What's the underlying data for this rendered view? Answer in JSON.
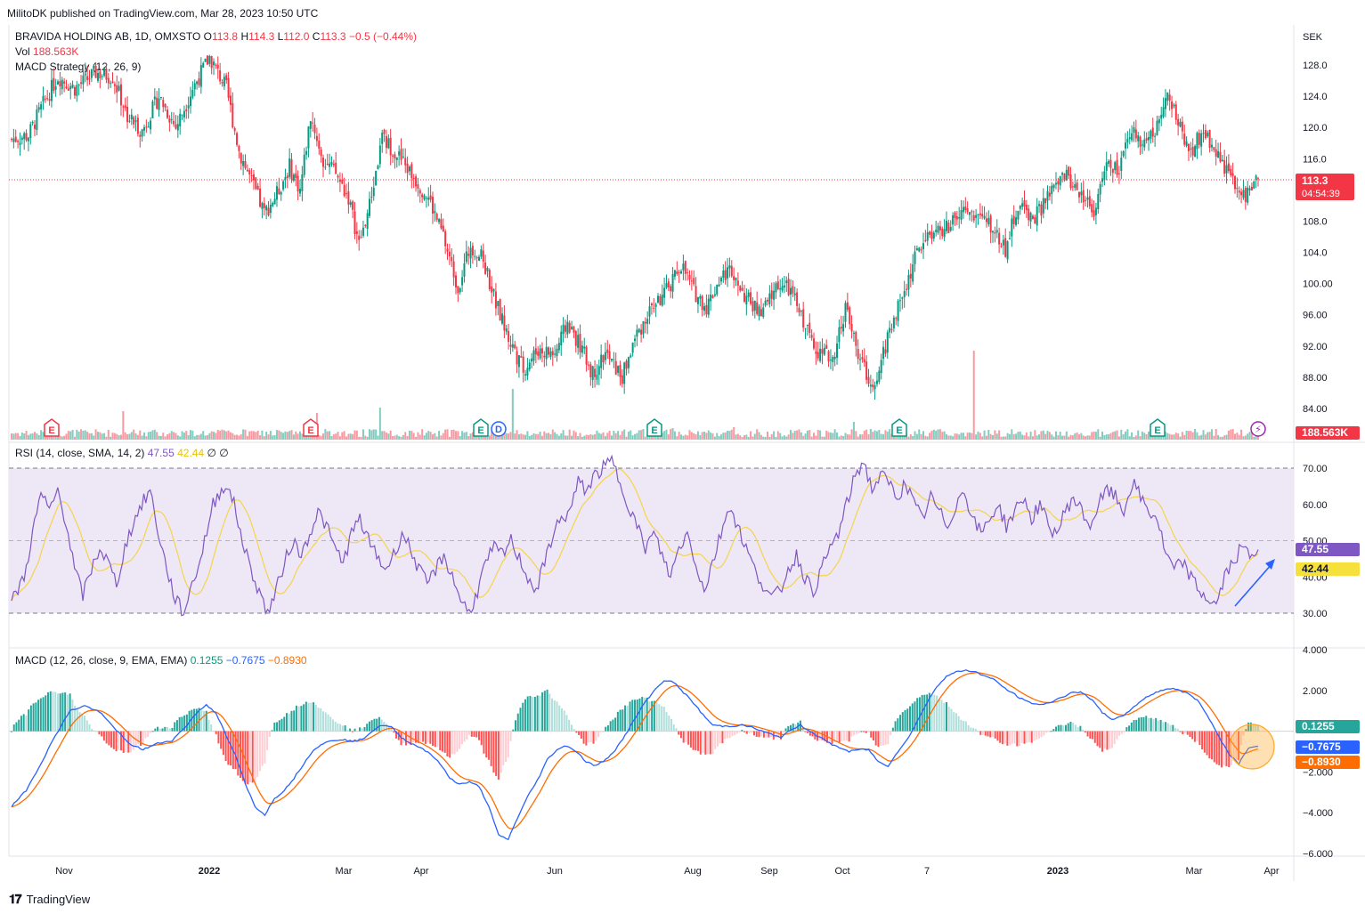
{
  "publisher": "MilitoDK published on TradingView.com, Mar 28, 2023 10:50 UTC",
  "footer": {
    "brand": "TradingView",
    "logo": "tradingview-logo-icon"
  },
  "colors": {
    "up": "#089981",
    "down": "#f23645",
    "rsi": "#7e57c2",
    "rsi_ma": "#f6d44b",
    "macd": "#2962ff",
    "signal": "#ff6d00",
    "rsi_band": "#ede7f6"
  },
  "legend": {
    "symbol": "BRAVIDA HOLDING AB, 1D, OMXSTO",
    "open_label": "O",
    "open": "113.8",
    "high_label": "H",
    "high": "114.3",
    "low_label": "L",
    "low": "112.0",
    "close_label": "C",
    "close": "113.3",
    "change": "−0.5 (−0.44%)",
    "vol_label": "Vol",
    "vol": "188.563K",
    "strategy": "MACD Strategy (12, 26, 9)",
    "rsi_label": "RSI (14, close, SMA, 14, 2)",
    "rsi_value": "47.55",
    "rsi_ma_value": "42.44",
    "rsi_extra": "∅ ∅",
    "macd_label": "MACD (12, 26, close, 9, EMA, EMA)",
    "macd_hist": "0.1255",
    "macd_line": "−0.7675",
    "macd_signal": "−0.8930"
  },
  "price_axis": {
    "unit": "SEK",
    "ticks": [
      "128.0",
      "124.0",
      "120.0",
      "116.0",
      "112.0",
      "108.0",
      "104.0",
      "100.00",
      "96.00",
      "92.00",
      "88.00",
      "84.00"
    ]
  },
  "rsi_axis": {
    "ticks": [
      "70.00",
      "60.00",
      "50.00",
      "40.00",
      "30.00"
    ]
  },
  "macd_axis": {
    "ticks": [
      "4.000",
      "2.000",
      "0.000",
      "−2.000",
      "−4.000",
      "−6.000"
    ]
  },
  "time_axis": {
    "ticks": [
      "Nov",
      "2022",
      "Mar",
      "Apr",
      "Jun",
      "Aug",
      "Sep",
      "Oct",
      "7",
      "2023",
      "Mar",
      "Apr"
    ]
  },
  "badges": {
    "price": "113.3",
    "countdown": "04:54:39",
    "volume": "188.563K",
    "rsi": "47.55",
    "rsi_ma": "42.44",
    "hist": "0.1255",
    "macd": "−0.7675",
    "signal": "−0.8930"
  },
  "events": [
    {
      "type": "E",
      "color": "#f23645"
    },
    {
      "type": "E",
      "color": "#f23645"
    },
    {
      "type": "E",
      "color": "#089981"
    },
    {
      "type": "D",
      "color": "#2962ff"
    },
    {
      "type": "E",
      "color": "#089981"
    },
    {
      "type": "E",
      "color": "#089981"
    },
    {
      "type": "E",
      "color": "#089981"
    },
    {
      "type": "flash",
      "color": "#9c27b0"
    }
  ],
  "chart_data": {
    "type": "candlestick",
    "title": "BRAVIDA HOLDING AB, 1D, OMXSTO",
    "price_range": [
      82.5,
      130.5
    ],
    "last_close": 113.3,
    "price_anchors": [
      [
        0,
        118.5
      ],
      [
        8,
        119
      ],
      [
        15,
        123
      ],
      [
        22,
        126.5
      ],
      [
        30,
        125
      ],
      [
        40,
        127
      ],
      [
        48,
        126.5
      ],
      [
        55,
        121.5
      ],
      [
        62,
        119.5
      ],
      [
        70,
        124
      ],
      [
        78,
        120
      ],
      [
        86,
        125
      ],
      [
        94,
        129
      ],
      [
        102,
        125
      ],
      [
        108,
        117
      ],
      [
        114,
        113
      ],
      [
        120,
        109
      ],
      [
        126,
        111.5
      ],
      [
        132,
        115
      ],
      [
        137,
        112
      ],
      [
        142,
        121.5
      ],
      [
        148,
        116
      ],
      [
        154,
        114
      ],
      [
        160,
        111
      ],
      [
        165,
        105
      ],
      [
        170,
        110
      ],
      [
        176,
        118.5
      ],
      [
        182,
        117
      ],
      [
        190,
        114
      ],
      [
        198,
        111
      ],
      [
        205,
        106
      ],
      [
        212,
        99.5
      ],
      [
        218,
        105
      ],
      [
        224,
        103
      ],
      [
        230,
        97.5
      ],
      [
        236,
        93
      ],
      [
        243,
        89
      ],
      [
        250,
        91.5
      ],
      [
        258,
        91
      ],
      [
        264,
        95
      ],
      [
        270,
        92
      ],
      [
        276,
        88.5
      ],
      [
        282,
        91
      ],
      [
        290,
        88
      ],
      [
        296,
        93
      ],
      [
        304,
        97
      ],
      [
        310,
        98.5
      ],
      [
        318,
        102.5
      ],
      [
        324,
        99
      ],
      [
        330,
        97
      ],
      [
        336,
        100.5
      ],
      [
        342,
        102
      ],
      [
        348,
        98.5
      ],
      [
        356,
        96
      ],
      [
        364,
        100
      ],
      [
        370,
        99
      ],
      [
        378,
        94
      ],
      [
        384,
        91
      ],
      [
        390,
        90.5
      ],
      [
        396,
        97
      ],
      [
        402,
        91
      ],
      [
        408,
        87
      ],
      [
        412,
        89
      ],
      [
        418,
        95
      ],
      [
        424,
        99
      ],
      [
        430,
        104
      ],
      [
        436,
        106.5
      ],
      [
        444,
        107
      ],
      [
        452,
        109
      ],
      [
        460,
        108.5
      ],
      [
        466,
        107
      ],
      [
        472,
        104.5
      ],
      [
        478,
        110
      ],
      [
        486,
        108.5
      ],
      [
        492,
        111
      ],
      [
        500,
        114
      ],
      [
        508,
        111.5
      ],
      [
        514,
        109.5
      ],
      [
        520,
        115
      ],
      [
        526,
        114.5
      ],
      [
        532,
        119.5
      ],
      [
        538,
        118
      ],
      [
        544,
        120
      ],
      [
        548,
        124.5
      ],
      [
        554,
        120.5
      ],
      [
        560,
        117
      ],
      [
        566,
        119.5
      ],
      [
        572,
        117
      ],
      [
        578,
        114
      ],
      [
        584,
        111
      ],
      [
        588,
        112
      ],
      [
        592,
        113.3
      ]
    ],
    "volume_spikes": [
      [
        53,
        32
      ],
      [
        145,
        30
      ],
      [
        175,
        36
      ],
      [
        238,
        57
      ],
      [
        314,
        13
      ],
      [
        343,
        14
      ],
      [
        400,
        20
      ],
      [
        412,
        11
      ],
      [
        457,
        100
      ],
      [
        562,
        12
      ]
    ],
    "rsi_anchors": [
      [
        0,
        33
      ],
      [
        6,
        40
      ],
      [
        10,
        52
      ],
      [
        14,
        63
      ],
      [
        18,
        58
      ],
      [
        22,
        64
      ],
      [
        26,
        55
      ],
      [
        30,
        42
      ],
      [
        34,
        35
      ],
      [
        38,
        42
      ],
      [
        42,
        48
      ],
      [
        46,
        44
      ],
      [
        50,
        38
      ],
      [
        54,
        48
      ],
      [
        58,
        55
      ],
      [
        62,
        60
      ],
      [
        66,
        64
      ],
      [
        70,
        52
      ],
      [
        74,
        42
      ],
      [
        78,
        34
      ],
      [
        82,
        30
      ],
      [
        86,
        38
      ],
      [
        90,
        45
      ],
      [
        96,
        60
      ],
      [
        102,
        66
      ],
      [
        106,
        60
      ],
      [
        110,
        50
      ],
      [
        114,
        42
      ],
      [
        118,
        36
      ],
      [
        122,
        30
      ],
      [
        126,
        36
      ],
      [
        130,
        44
      ],
      [
        134,
        50
      ],
      [
        138,
        46
      ],
      [
        142,
        52
      ],
      [
        146,
        58
      ],
      [
        150,
        54
      ],
      [
        154,
        48
      ],
      [
        158,
        44
      ],
      [
        162,
        52
      ],
      [
        166,
        56
      ],
      [
        170,
        50
      ],
      [
        174,
        46
      ],
      [
        178,
        42
      ],
      [
        182,
        46
      ],
      [
        186,
        52
      ],
      [
        190,
        48
      ],
      [
        194,
        42
      ],
      [
        198,
        38
      ],
      [
        202,
        42
      ],
      [
        206,
        46
      ],
      [
        210,
        40
      ],
      [
        214,
        34
      ],
      [
        218,
        30
      ],
      [
        222,
        36
      ],
      [
        226,
        44
      ],
      [
        230,
        48
      ],
      [
        234,
        46
      ],
      [
        238,
        50
      ],
      [
        242,
        45
      ],
      [
        246,
        40
      ],
      [
        250,
        36
      ],
      [
        254,
        44
      ],
      [
        258,
        52
      ],
      [
        262,
        56
      ],
      [
        266,
        58
      ],
      [
        270,
        66
      ],
      [
        274,
        64
      ],
      [
        278,
        68
      ],
      [
        282,
        70
      ],
      [
        286,
        72
      ],
      [
        290,
        66
      ],
      [
        294,
        60
      ],
      [
        298,
        54
      ],
      [
        302,
        48
      ],
      [
        306,
        52
      ],
      [
        310,
        46
      ],
      [
        314,
        40
      ],
      [
        318,
        48
      ],
      [
        322,
        52
      ],
      [
        326,
        44
      ],
      [
        330,
        36
      ],
      [
        334,
        44
      ],
      [
        338,
        52
      ],
      [
        342,
        60
      ],
      [
        346,
        54
      ],
      [
        350,
        48
      ],
      [
        354,
        42
      ],
      [
        358,
        38
      ],
      [
        362,
        34
      ],
      [
        366,
        36
      ],
      [
        370,
        42
      ],
      [
        374,
        46
      ],
      [
        378,
        40
      ],
      [
        382,
        36
      ],
      [
        386,
        42
      ],
      [
        390,
        48
      ],
      [
        394,
        52
      ],
      [
        398,
        60
      ],
      [
        402,
        68
      ],
      [
        406,
        72
      ],
      [
        410,
        64
      ],
      [
        414,
        68
      ],
      [
        418,
        66
      ],
      [
        422,
        62
      ],
      [
        426,
        66
      ],
      [
        430,
        60
      ],
      [
        434,
        56
      ],
      [
        438,
        62
      ],
      [
        442,
        58
      ],
      [
        446,
        54
      ],
      [
        450,
        60
      ],
      [
        454,
        64
      ],
      [
        458,
        56
      ],
      [
        462,
        52
      ],
      [
        466,
        56
      ],
      [
        470,
        60
      ],
      [
        474,
        54
      ],
      [
        478,
        58
      ],
      [
        482,
        62
      ],
      [
        486,
        56
      ],
      [
        490,
        60
      ],
      [
        494,
        54
      ],
      [
        498,
        52
      ],
      [
        502,
        58
      ],
      [
        506,
        62
      ],
      [
        510,
        58
      ],
      [
        514,
        54
      ],
      [
        518,
        60
      ],
      [
        522,
        64
      ],
      [
        526,
        62
      ],
      [
        530,
        58
      ],
      [
        534,
        66
      ],
      [
        538,
        62
      ],
      [
        542,
        58
      ],
      [
        546,
        56
      ],
      [
        550,
        46
      ],
      [
        554,
        42
      ],
      [
        558,
        44
      ],
      [
        562,
        40
      ],
      [
        566,
        36
      ],
      [
        570,
        34
      ],
      [
        574,
        32
      ],
      [
        578,
        40
      ],
      [
        582,
        44
      ],
      [
        586,
        48
      ],
      [
        590,
        46
      ],
      [
        594,
        47.55
      ]
    ],
    "rsi_ma_final": 42.44,
    "macd_anchors": [
      [
        0,
        -3.7
      ],
      [
        6,
        -2.9
      ],
      [
        12,
        -1.6
      ],
      [
        18,
        -0.2
      ],
      [
        24,
        1.0
      ],
      [
        30,
        1.25
      ],
      [
        36,
        0.95
      ],
      [
        42,
        0.2
      ],
      [
        48,
        -0.6
      ],
      [
        54,
        -0.9
      ],
      [
        60,
        -0.6
      ],
      [
        66,
        -0.45
      ],
      [
        72,
        0.3
      ],
      [
        76,
        0.9
      ],
      [
        80,
        1.3
      ],
      [
        84,
        0.9
      ],
      [
        88,
        -0.2
      ],
      [
        92,
        -1.2
      ],
      [
        96,
        -2.6
      ],
      [
        100,
        -3.7
      ],
      [
        104,
        -4.1
      ],
      [
        108,
        -3.3
      ],
      [
        112,
        -2.9
      ],
      [
        116,
        -2.3
      ],
      [
        120,
        -1.6
      ],
      [
        124,
        -0.9
      ],
      [
        128,
        -0.6
      ],
      [
        132,
        -0.45
      ],
      [
        136,
        -0.4
      ],
      [
        140,
        -0.5
      ],
      [
        144,
        -0.4
      ],
      [
        148,
        0.0
      ],
      [
        152,
        0.3
      ],
      [
        156,
        0.2
      ],
      [
        160,
        -0.3
      ],
      [
        164,
        -0.6
      ],
      [
        168,
        -0.8
      ],
      [
        172,
        -1.1
      ],
      [
        176,
        -1.6
      ],
      [
        180,
        -2.3
      ],
      [
        184,
        -2.6
      ],
      [
        188,
        -2.5
      ],
      [
        192,
        -2.7
      ],
      [
        196,
        -3.7
      ],
      [
        200,
        -5.1
      ],
      [
        204,
        -5.3
      ],
      [
        208,
        -4.2
      ],
      [
        212,
        -3.2
      ],
      [
        216,
        -2.4
      ],
      [
        220,
        -1.4
      ],
      [
        224,
        -0.9
      ],
      [
        228,
        -0.7
      ],
      [
        232,
        -1.0
      ],
      [
        236,
        -1.5
      ],
      [
        240,
        -1.7
      ],
      [
        244,
        -1.4
      ],
      [
        248,
        -0.9
      ],
      [
        252,
        -0.2
      ],
      [
        256,
        0.6
      ],
      [
        260,
        1.4
      ],
      [
        264,
        2.0
      ],
      [
        268,
        2.5
      ],
      [
        272,
        2.4
      ],
      [
        276,
        1.9
      ],
      [
        280,
        1.4
      ],
      [
        284,
        0.8
      ],
      [
        288,
        0.3
      ],
      [
        292,
        0.25
      ],
      [
        296,
        0.25
      ],
      [
        300,
        0.3
      ],
      [
        304,
        0.2
      ],
      [
        308,
        0.0
      ],
      [
        312,
        -0.15
      ],
      [
        316,
        -0.3
      ],
      [
        320,
        0.05
      ],
      [
        324,
        0.3
      ],
      [
        328,
        0.0
      ],
      [
        332,
        -0.3
      ],
      [
        336,
        -0.6
      ],
      [
        340,
        -0.8
      ],
      [
        344,
        -1.0
      ],
      [
        348,
        -0.9
      ],
      [
        352,
        -0.9
      ],
      [
        356,
        -1.5
      ],
      [
        360,
        -1.7
      ],
      [
        364,
        -1.0
      ],
      [
        368,
        -0.4
      ],
      [
        372,
        0.5
      ],
      [
        376,
        1.4
      ],
      [
        380,
        2.2
      ],
      [
        384,
        2.7
      ],
      [
        388,
        2.9
      ],
      [
        392,
        3.0
      ],
      [
        396,
        2.9
      ],
      [
        400,
        2.7
      ],
      [
        404,
        2.5
      ],
      [
        408,
        2.1
      ],
      [
        412,
        1.8
      ],
      [
        416,
        1.5
      ],
      [
        420,
        1.35
      ],
      [
        424,
        1.3
      ],
      [
        428,
        1.5
      ],
      [
        432,
        1.7
      ],
      [
        436,
        1.9
      ],
      [
        440,
        1.9
      ],
      [
        444,
        1.5
      ],
      [
        448,
        0.9
      ],
      [
        452,
        0.6
      ],
      [
        456,
        0.7
      ],
      [
        460,
        1.1
      ],
      [
        464,
        1.5
      ],
      [
        468,
        1.8
      ],
      [
        472,
        2.0
      ],
      [
        476,
        2.1
      ],
      [
        480,
        2.0
      ],
      [
        484,
        1.8
      ],
      [
        488,
        1.4
      ],
      [
        492,
        0.6
      ],
      [
        496,
        -0.3
      ],
      [
        500,
        -1.1
      ],
      [
        504,
        -1.6
      ],
      [
        508,
        -0.8
      ],
      [
        512,
        -0.77
      ]
    ]
  }
}
